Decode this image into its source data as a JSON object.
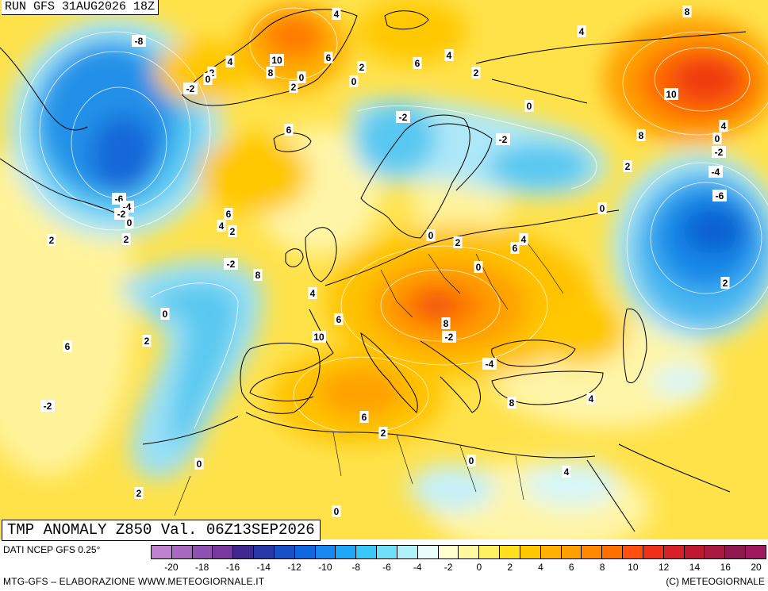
{
  "header": {
    "run_label": "RUN GFS 31AUG2026 18Z"
  },
  "title": "TMP ANOMALY Z850 Val. 06Z13SEP2026",
  "source": "DATI NCEP GFS 0.25°",
  "credit_left": "MTG-GFS – ELABORAZIONE WWW.METEOGIORNALE.IT",
  "credit_right": "(C) METEOGIORNALE",
  "colorbar": {
    "ticks": [
      "-20",
      "-18",
      "-16",
      "-14",
      "-12",
      "-10",
      "-8",
      "-6",
      "-4",
      "-2",
      "0",
      "2",
      "4",
      "6",
      "8",
      "10",
      "12",
      "14",
      "16",
      "20"
    ],
    "colors": [
      "#c080d0",
      "#a868c0",
      "#9050b0",
      "#7838a0",
      "#402890",
      "#2838a8",
      "#1850c8",
      "#1068e0",
      "#1888f0",
      "#20a8f8",
      "#38c8f8",
      "#70e0f8",
      "#b0f0f8",
      "#e8fcfc",
      "#ffffd0",
      "#fff8a0",
      "#fff060",
      "#ffe020",
      "#ffc800",
      "#ffb000",
      "#ffa000",
      "#ff8800",
      "#ff7000",
      "#ff5010",
      "#f03018",
      "#d82028",
      "#c01830",
      "#a81840",
      "#901850",
      "#a01860"
    ]
  },
  "contour_labels": [
    {
      "v": "-8"
    },
    {
      "v": "4"
    },
    {
      "v": "8"
    },
    {
      "v": "4"
    },
    {
      "v": "2"
    },
    {
      "v": "4"
    },
    {
      "v": "10"
    },
    {
      "v": "8"
    },
    {
      "v": "6"
    },
    {
      "v": "2"
    },
    {
      "v": "6"
    },
    {
      "v": "4"
    },
    {
      "v": "-2"
    },
    {
      "v": "0"
    },
    {
      "v": "2"
    },
    {
      "v": "0"
    },
    {
      "v": "0"
    },
    {
      "v": "2"
    },
    {
      "v": "10"
    },
    {
      "v": "0"
    },
    {
      "v": "6"
    },
    {
      "v": "-2"
    },
    {
      "v": "-2"
    },
    {
      "v": "8"
    },
    {
      "v": "4"
    },
    {
      "v": "0"
    },
    {
      "v": "-2"
    },
    {
      "v": "2"
    },
    {
      "v": "-4"
    },
    {
      "v": "-6"
    },
    {
      "v": "-6"
    },
    {
      "v": "-4"
    },
    {
      "v": "-2"
    },
    {
      "v": "0"
    },
    {
      "v": "6"
    },
    {
      "v": "4"
    },
    {
      "v": "2"
    },
    {
      "v": "2"
    },
    {
      "v": "2"
    },
    {
      "v": "0"
    },
    {
      "v": "2"
    },
    {
      "v": "4"
    },
    {
      "v": "6"
    },
    {
      "v": "0"
    },
    {
      "v": "-2"
    },
    {
      "v": "8"
    },
    {
      "v": "0"
    },
    {
      "v": "4"
    },
    {
      "v": "6"
    },
    {
      "v": "10"
    },
    {
      "v": "8"
    },
    {
      "v": "-2"
    },
    {
      "v": "0"
    },
    {
      "v": "2"
    },
    {
      "v": "6"
    },
    {
      "v": "-4"
    },
    {
      "v": "2"
    },
    {
      "v": "4"
    },
    {
      "v": "8"
    },
    {
      "v": "6"
    },
    {
      "v": "2"
    },
    {
      "v": "-2"
    },
    {
      "v": "0"
    },
    {
      "v": "2"
    },
    {
      "v": "0"
    },
    {
      "v": "4"
    },
    {
      "v": "0"
    }
  ]
}
